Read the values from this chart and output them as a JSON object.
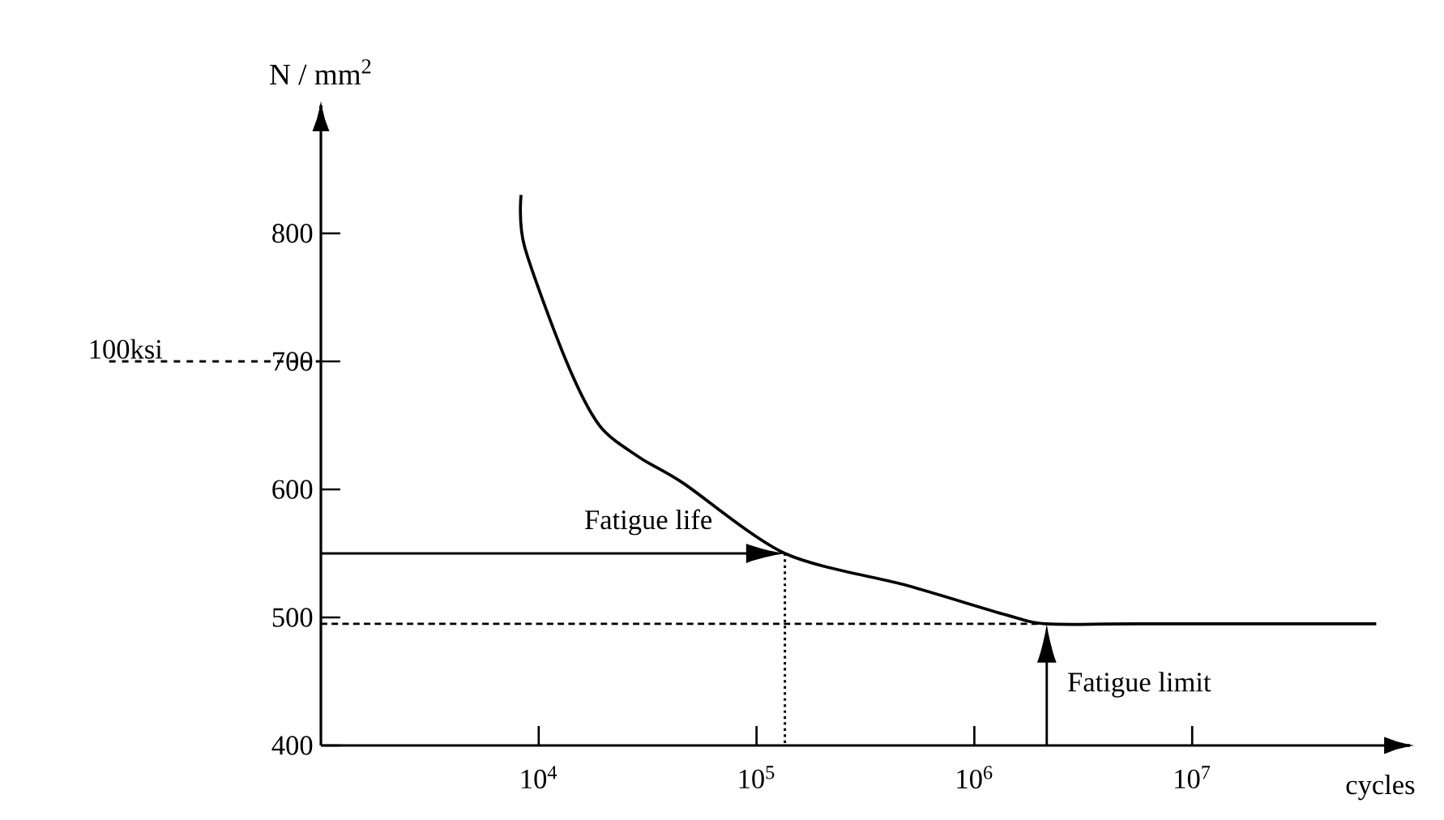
{
  "chart_data": {
    "type": "line",
    "ylabel": "N / mm$^{2}$",
    "xlabel": "cycles",
    "log": "x",
    "marker": "none",
    "xlim": [
      1000,
      100000000
    ],
    "ylim": [
      400,
      900
    ],
    "xticks": [
      {
        "value": 10000,
        "label": "10$^{4}$"
      },
      {
        "value": 100000,
        "label": "10$^{5}$"
      },
      {
        "value": 1000000,
        "label": "10$^{6}$"
      },
      {
        "value": 10000000,
        "label": "10$^{7}$"
      }
    ],
    "yticks": [
      400,
      500,
      600,
      700,
      800
    ],
    "series": [
      {
        "color": "#000000",
        "x": [
          8300,
          8600,
          13400,
          19000,
          29000,
          46000,
          135000,
          490000,
          1400000,
          2150000,
          5600000,
          70000000
        ],
        "values": [
          830,
          790,
          700,
          650,
          625,
          605,
          550,
          525,
          502,
          495,
          495,
          495
        ]
      },
      {
        "color": "#000000",
        "line_style": "dotted",
        "x": [
          135000,
          135000
        ],
        "values": [
          550,
          400
        ]
      },
      {
        "color": "#000000",
        "line_style": "dashed",
        "x": [
          1000,
          2150000
        ],
        "values": [
          495,
          495
        ]
      }
    ],
    "ref_lines": [
      {
        "axis": "y",
        "value": 700,
        "label": "100ksi",
        "line_style": "dashed"
      }
    ],
    "annotations": [
      {
        "text": "Fatigue life",
        "x": 135000,
        "y": 550
      },
      {
        "text": "Fatigue limit",
        "x": 2150000,
        "y": 495
      }
    ]
  }
}
